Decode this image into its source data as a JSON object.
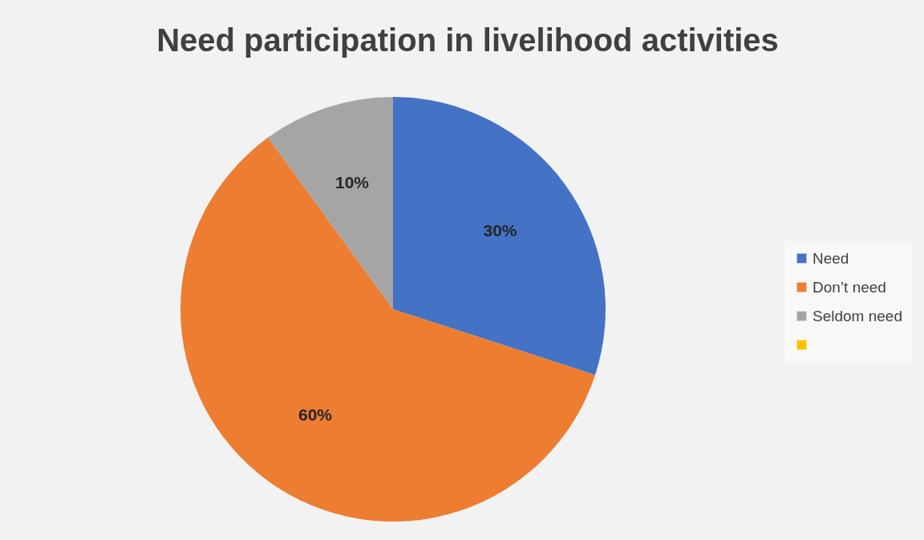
{
  "chart_data": {
    "type": "pie",
    "title": "Need  participation in livelihood activities",
    "categories": [
      "Need",
      "Don’t need",
      "Seldom need",
      null
    ],
    "values": [
      30,
      60,
      10,
      0
    ],
    "colors": [
      "#4472c4",
      "#ed7d31",
      "#a5a5a5",
      "#ffc000"
    ],
    "value_labels": [
      "30%",
      "60%",
      "10%",
      null
    ],
    "legend": "right"
  }
}
